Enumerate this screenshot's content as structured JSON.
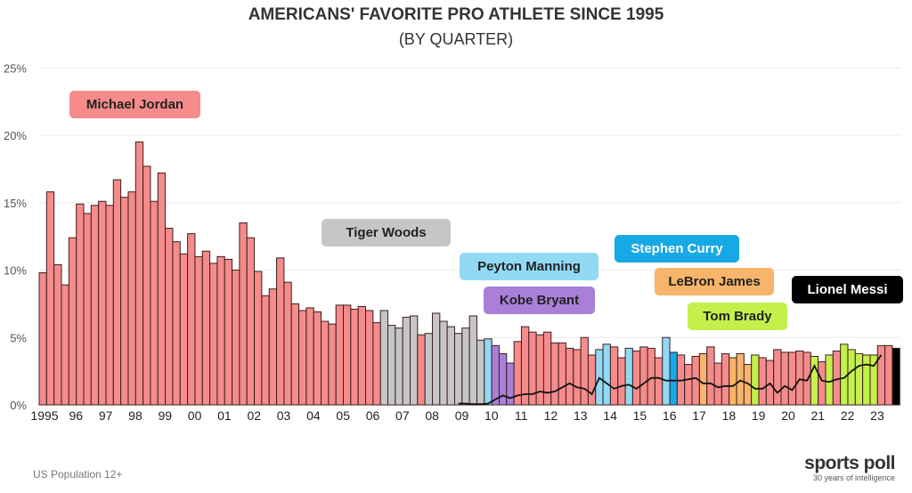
{
  "chart_data": {
    "type": "bar",
    "title": "AMERICANS' FAVORITE PRO ATHLETE SINCE 1995",
    "subtitle": "(BY QUARTER)",
    "xlabel": "",
    "ylabel": "",
    "ylim": [
      0,
      25
    ],
    "yticks": [
      "0%",
      "5%",
      "10%",
      "15%",
      "20%",
      "25%"
    ],
    "grid": true,
    "xtick_labels": [
      "1995",
      "96",
      "97",
      "98",
      "99",
      "00",
      "01",
      "02",
      "03",
      "04",
      "05",
      "06",
      "07",
      "08",
      "09",
      "10",
      "11",
      "12",
      "13",
      "14",
      "15",
      "16",
      "17",
      "18",
      "19",
      "20",
      "21",
      "22",
      "23"
    ],
    "period": "quarterly, 1995 Q1 - 2023 Q4",
    "values": [
      9.8,
      15.8,
      10.4,
      8.9,
      12.4,
      14.9,
      14.2,
      14.8,
      15.1,
      14.8,
      16.7,
      15.4,
      15.8,
      19.5,
      17.7,
      15.1,
      17.2,
      13.1,
      12.1,
      11.2,
      12.7,
      11.0,
      11.4,
      10.5,
      11.0,
      10.8,
      10.0,
      13.5,
      12.4,
      9.9,
      8.1,
      8.6,
      10.9,
      9.1,
      7.5,
      7.0,
      7.2,
      6.9,
      6.2,
      6.0,
      7.4,
      7.4,
      7.1,
      7.3,
      7.0,
      6.1,
      7.0,
      5.9,
      5.7,
      6.5,
      6.6,
      5.2,
      5.3,
      6.8,
      6.2,
      5.8,
      5.3,
      5.7,
      6.6,
      4.8,
      4.9,
      4.4,
      3.8,
      3.1,
      4.7,
      5.8,
      5.4,
      5.2,
      5.4,
      4.6,
      4.6,
      4.2,
      4.1,
      5.0,
      3.7,
      4.1,
      4.5,
      4.3,
      3.5,
      4.2,
      4.0,
      4.3,
      4.2,
      3.5,
      5.0,
      3.9,
      3.7,
      3.0,
      3.6,
      3.8,
      4.3,
      3.1,
      3.8,
      3.5,
      3.8,
      3.0,
      3.7,
      3.5,
      3.3,
      4.1,
      3.9,
      3.9,
      4.0,
      3.9,
      3.6,
      3.2,
      3.7,
      4.0,
      4.5,
      4.1,
      3.8,
      3.7,
      3.7,
      4.4,
      4.4,
      4.2
    ],
    "leaders": [
      "MJ",
      "MJ",
      "MJ",
      "MJ",
      "MJ",
      "MJ",
      "MJ",
      "MJ",
      "MJ",
      "MJ",
      "MJ",
      "MJ",
      "MJ",
      "MJ",
      "MJ",
      "MJ",
      "MJ",
      "MJ",
      "MJ",
      "MJ",
      "MJ",
      "MJ",
      "MJ",
      "MJ",
      "MJ",
      "MJ",
      "MJ",
      "MJ",
      "MJ",
      "MJ",
      "MJ",
      "MJ",
      "MJ",
      "MJ",
      "MJ",
      "MJ",
      "MJ",
      "MJ",
      "MJ",
      "MJ",
      "MJ",
      "MJ",
      "MJ",
      "MJ",
      "MJ",
      "MJ",
      "TW",
      "TW",
      "TW",
      "TW",
      "TW",
      "MJ",
      "TW",
      "TW",
      "TW",
      "TW",
      "TW",
      "TW",
      "TW",
      "TW",
      "PM",
      "KB",
      "KB",
      "KB",
      "MJ",
      "MJ",
      "MJ",
      "MJ",
      "MJ",
      "MJ",
      "MJ",
      "MJ",
      "MJ",
      "MJ",
      "MJ",
      "PM",
      "PM",
      "MJ",
      "MJ",
      "PM",
      "MJ",
      "MJ",
      "MJ",
      "MJ",
      "PM",
      "SC",
      "MJ",
      "MJ",
      "MJ",
      "LJ",
      "MJ",
      "MJ",
      "MJ",
      "LJ",
      "LJ",
      "LJ",
      "TB",
      "MJ",
      "MJ",
      "MJ",
      "MJ",
      "MJ",
      "MJ",
      "MJ",
      "TB",
      "MJ",
      "TB",
      "MJ",
      "TB",
      "TB",
      "TB",
      "TB",
      "TB",
      "MJ",
      "MJ",
      "LM"
    ],
    "line_series": {
      "name": "Lionel Messi",
      "start_index": 56,
      "values": [
        0.1,
        0.1,
        0.05,
        0.05,
        0.1,
        0.4,
        0.7,
        0.5,
        0.7,
        0.8,
        0.8,
        1.0,
        0.9,
        1.0,
        1.3,
        1.6,
        1.3,
        1.2,
        0.8,
        2.0,
        1.6,
        1.2,
        1.4,
        1.5,
        1.2,
        1.6,
        2.0,
        2.0,
        1.8,
        1.8,
        1.8,
        1.9,
        2.0,
        1.6,
        1.6,
        1.3,
        1.4,
        1.4,
        1.8,
        1.6,
        1.2,
        1.2,
        1.6,
        0.9,
        1.4,
        1.1,
        1.9,
        1.8,
        2.9,
        1.8,
        1.7,
        1.9,
        2.0,
        2.5,
        2.9,
        3.0,
        2.9,
        3.7
      ]
    },
    "legend": [
      {
        "key": "MJ",
        "name": "Michael Jordan",
        "color": "#f58b8b",
        "text": "#222"
      },
      {
        "key": "TW",
        "name": "Tiger Woods",
        "color": "#c6c6c6",
        "text": "#222"
      },
      {
        "key": "PM",
        "name": "Peyton Manning",
        "color": "#92d9f4",
        "text": "#222"
      },
      {
        "key": "KB",
        "name": "Kobe Bryant",
        "color": "#a97fd8",
        "text": "#222"
      },
      {
        "key": "SC",
        "name": "Stephen Curry",
        "color": "#17a8e6",
        "text": "#fff"
      },
      {
        "key": "LJ",
        "name": "LeBron James",
        "color": "#f7b56b",
        "text": "#222"
      },
      {
        "key": "TB",
        "name": "Tom Brady",
        "color": "#c4f04c",
        "text": "#222"
      },
      {
        "key": "LM",
        "name": "Lionel Messi",
        "color": "#000000",
        "text": "#fff"
      }
    ]
  },
  "footer": {
    "population": "US Population 12+"
  },
  "logo": {
    "name": "sports poll",
    "tagline": "30 years of intelligence"
  }
}
